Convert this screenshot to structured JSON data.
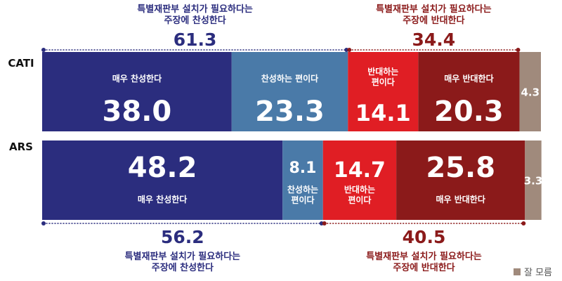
{
  "chart_data": {
    "type": "bar",
    "orientation": "horizontal",
    "stacked": true,
    "rows": [
      {
        "name": "CATI",
        "segments": [
          {
            "label": "매우 찬성한다",
            "value": 38.0,
            "color": "#2b2d7e"
          },
          {
            "label": "찬성하는 편이다",
            "value": 23.3,
            "color": "#4a7aa8"
          },
          {
            "label": "반대하는 편이다",
            "value": 14.1,
            "color": "#e01e24"
          },
          {
            "label": "매우 반대한다",
            "value": 20.3,
            "color": "#8b1a1a"
          },
          {
            "label": "",
            "value": 4.3,
            "color": "#a08a7c"
          }
        ],
        "groups": [
          {
            "title": "특별재판부 설치가 필요하다는 주장에 찬성한다",
            "value": 61.3,
            "side": "agree"
          },
          {
            "title": "특별재판부 설치가 필요하다는 주장에 반대한다",
            "value": 34.4,
            "side": "disagree"
          }
        ]
      },
      {
        "name": "ARS",
        "segments": [
          {
            "label": "매우 찬성한다",
            "value": 48.2,
            "color": "#2b2d7e"
          },
          {
            "label": "찬성하는 편이다",
            "value": 8.1,
            "color": "#4a7aa8"
          },
          {
            "label": "반대하는 편이다",
            "value": 14.7,
            "color": "#e01e24"
          },
          {
            "label": "매우 반대한다",
            "value": 25.8,
            "color": "#8b1a1a"
          },
          {
            "label": "",
            "value": 3.3,
            "color": "#a08a7c"
          }
        ],
        "groups": [
          {
            "title": "특별재판부 설치가 필요하다는 주장에 찬성한다",
            "value": 56.2,
            "side": "agree"
          },
          {
            "title": "특별재판부 설치가 필요하다는 주장에 반대한다",
            "value": 40.5,
            "side": "disagree"
          }
        ]
      }
    ],
    "legend": [
      {
        "label": "잘 모름",
        "color": "#a08a7c"
      }
    ],
    "xlim": [
      0,
      100
    ]
  }
}
